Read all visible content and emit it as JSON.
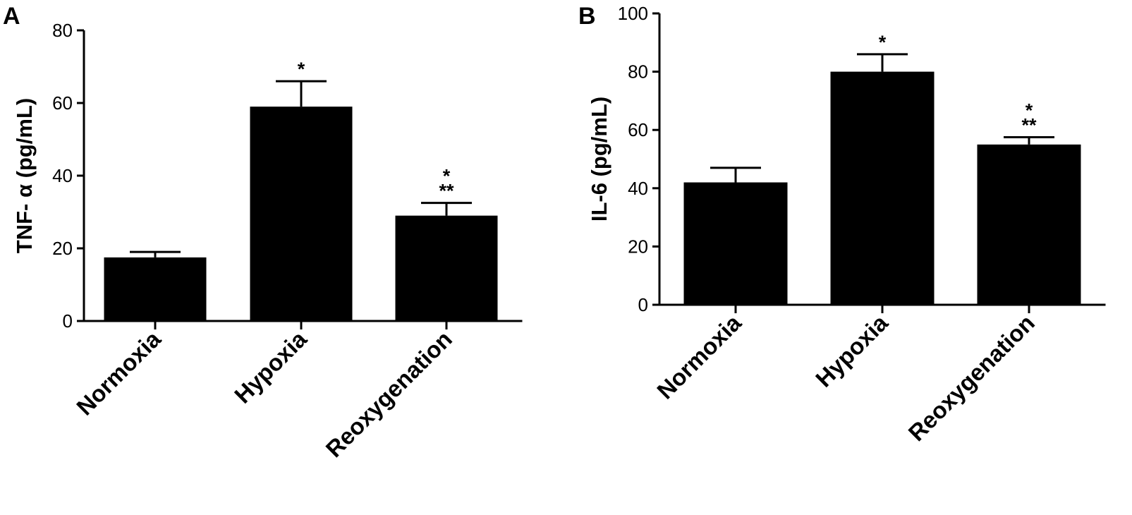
{
  "chart_data": [
    {
      "panel": "A",
      "type": "bar",
      "ylabel": "TNF- α (pg/mL)",
      "xlabel": "",
      "ylim": [
        0,
        80
      ],
      "yticks": [
        0,
        20,
        40,
        60,
        80
      ],
      "categories": [
        "Normoxia",
        "Hypoxia",
        "Reoxygenation"
      ],
      "values": [
        17.5,
        59,
        29
      ],
      "errors": [
        1.5,
        7,
        3.5
      ],
      "significance": [
        [],
        [
          "*"
        ],
        [
          "*",
          "**"
        ]
      ],
      "color": "#000000"
    },
    {
      "panel": "B",
      "type": "bar",
      "ylabel": "IL-6 (pg/mL)",
      "xlabel": "",
      "ylim": [
        0,
        100
      ],
      "yticks": [
        0,
        20,
        40,
        60,
        80,
        100
      ],
      "categories": [
        "Normoxia",
        "Hypoxia",
        "Reoxygenation"
      ],
      "values": [
        42,
        80,
        55
      ],
      "errors": [
        5,
        6,
        2.5
      ],
      "significance": [
        [],
        [
          "*"
        ],
        [
          "*",
          "**"
        ]
      ],
      "color": "#000000"
    }
  ]
}
